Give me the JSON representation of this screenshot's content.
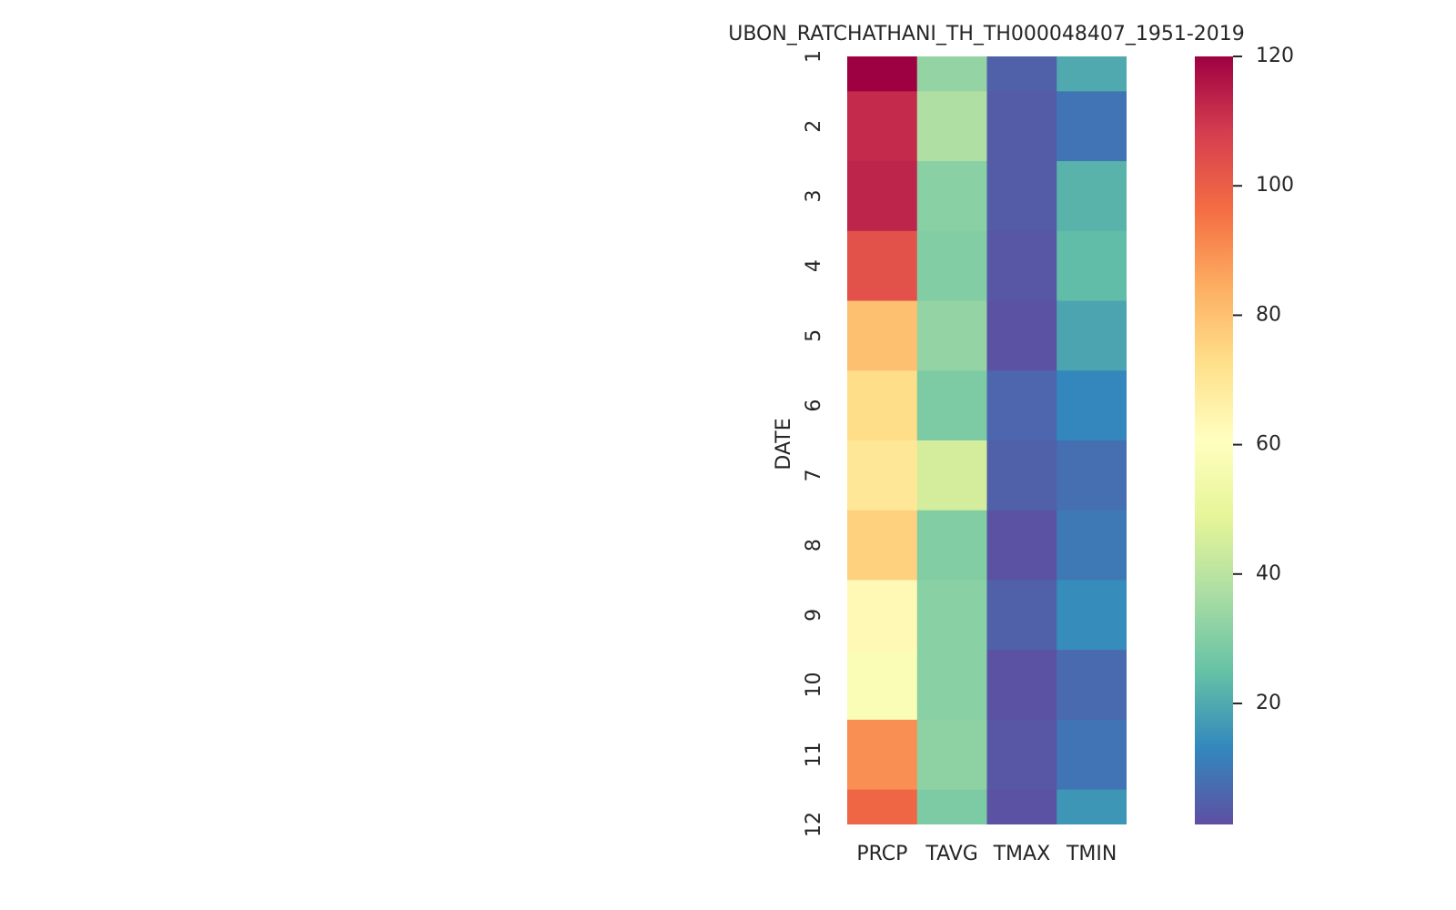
{
  "chart_data": {
    "type": "heatmap",
    "title": "UBON_RATCHATHANI_TH_TH000048407_1951-2019",
    "y_label": "DATE",
    "x_categories": [
      "PRCP",
      "TAVG",
      "TMAX",
      "TMIN"
    ],
    "y_categories": [
      "1",
      "2",
      "3",
      "4",
      "5",
      "6",
      "7",
      "8",
      "9",
      "10",
      "11",
      "12"
    ],
    "z": [
      [
        120,
        33,
        5,
        20
      ],
      [
        112,
        38,
        4,
        9
      ],
      [
        113,
        31,
        4,
        22
      ],
      [
        103,
        30,
        3,
        24
      ],
      [
        80,
        33,
        2,
        19
      ],
      [
        73,
        29,
        6,
        13
      ],
      [
        70,
        45,
        5,
        8
      ],
      [
        76,
        30,
        2,
        10
      ],
      [
        63,
        31,
        5,
        14
      ],
      [
        58,
        31,
        2,
        7
      ],
      [
        90,
        32,
        3,
        9
      ],
      [
        98,
        29,
        2,
        16
      ]
    ],
    "clim": [
      1.3,
      120
    ],
    "colorbar_ticks": [
      20,
      40,
      60,
      80,
      100,
      120
    ],
    "colormap": [
      "#5e4fa2",
      "#3288bd",
      "#66c2a5",
      "#abdda4",
      "#e6f598",
      "#ffffbf",
      "#fee08b",
      "#fdae61",
      "#f46d43",
      "#d53e4f",
      "#9e0142"
    ]
  }
}
